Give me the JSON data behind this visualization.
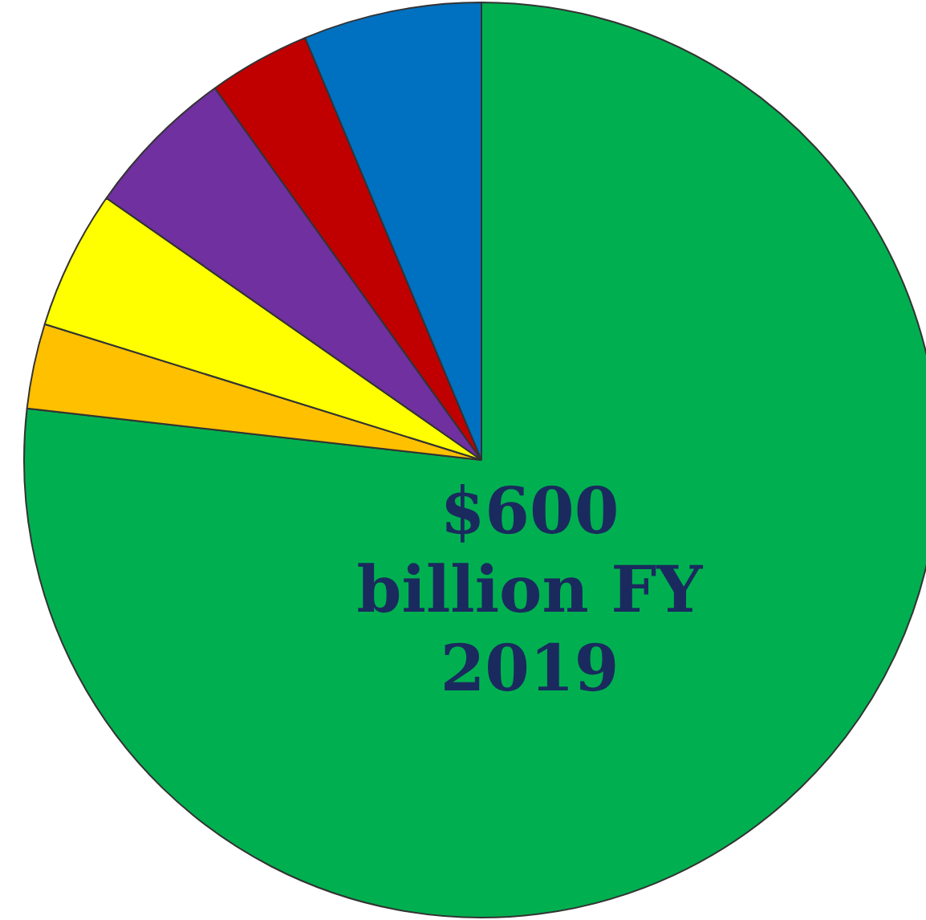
{
  "chart_data": {
    "type": "pie",
    "categories": [
      null,
      null,
      null,
      null,
      null,
      null
    ],
    "values": [
      76.8,
      3.0,
      4.9,
      5.4,
      3.6,
      6.3
    ],
    "colors": [
      "#00b050",
      "#ffc000",
      "#ffff00",
      "#7030a0",
      "#c00000",
      "#0070c0"
    ],
    "annotations": [
      "$600 billion FY 2019"
    ],
    "legend": false
  }
}
